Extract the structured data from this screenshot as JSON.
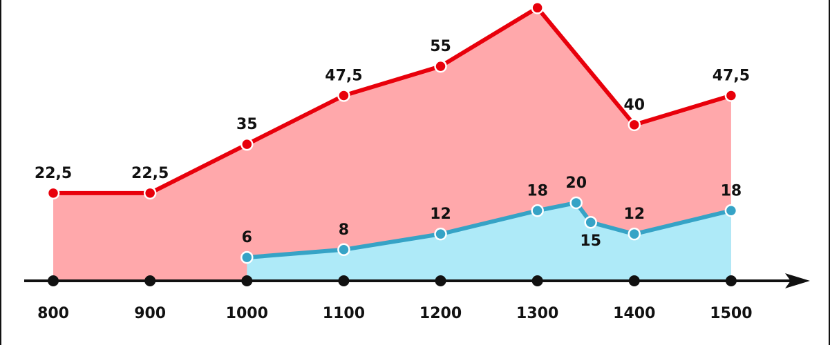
{
  "chart_data": {
    "type": "area",
    "xlim": [
      770,
      1580
    ],
    "ylim": [
      0,
      72
    ],
    "xticks": [
      800,
      900,
      1000,
      1100,
      1200,
      1300,
      1400,
      1500
    ],
    "series": [
      {
        "color": "#e8000b",
        "fill": "#ffa8ab",
        "x": [
          800,
          900,
          1000,
          1100,
          1200,
          1300,
          1400,
          1500
        ],
        "values": [
          22.5,
          22.5,
          35,
          47.5,
          55,
          70,
          40,
          47.5
        ],
        "value_labels": [
          "22,5",
          "22,5",
          "35",
          "47,5",
          "55",
          null,
          "40",
          "47,5"
        ]
      },
      {
        "color": "#36a3c6",
        "fill": "#aeeaf8",
        "x": [
          1000,
          1100,
          1200,
          1300,
          1340,
          1355,
          1400,
          1500
        ],
        "values": [
          6,
          8,
          12,
          18,
          20,
          15,
          12,
          18
        ]
      }
    ]
  }
}
